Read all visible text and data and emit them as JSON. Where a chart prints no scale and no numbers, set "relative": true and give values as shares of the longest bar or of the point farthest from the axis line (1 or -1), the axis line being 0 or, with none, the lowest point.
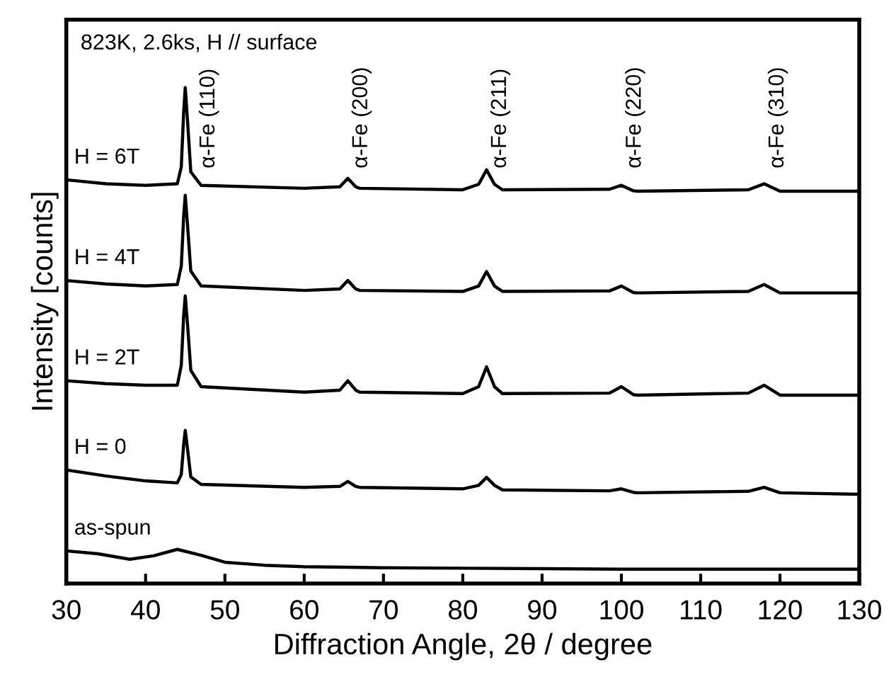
{
  "chart_data": {
    "type": "line",
    "title": "823K, 2.6ks, H // surface",
    "xlabel": "Diffraction Angle, 2θ / degree",
    "ylabel": "Intensity [counts]",
    "relative": true,
    "xlim": [
      30,
      130
    ],
    "xticks": [
      30,
      40,
      50,
      60,
      70,
      80,
      90,
      100,
      110,
      120,
      130
    ],
    "grid": false,
    "legend": false,
    "marker": "none",
    "line_style": "solid",
    "series": [
      {
        "name": "H = 6T",
        "color": "#000000",
        "x": [
          30,
          35,
          40,
          44,
          44.5,
          44.8,
          45,
          45.3,
          45.7,
          47,
          60,
          64.5,
          65.5,
          66.5,
          67,
          80,
          82,
          83,
          84,
          85,
          98.5,
          100,
          101.5,
          102,
          116,
          118,
          120,
          130
        ],
        "values": [
          0.814,
          0.806,
          0.803,
          0.806,
          0.84,
          0.95,
          1.0,
          0.93,
          0.83,
          0.803,
          0.797,
          0.8,
          0.817,
          0.8,
          0.797,
          0.794,
          0.805,
          0.834,
          0.805,
          0.794,
          0.795,
          0.803,
          0.792,
          0.791,
          0.794,
          0.806,
          0.791,
          0.791
        ]
      },
      {
        "name": "H = 4T",
        "color": "#000000",
        "x": [
          30,
          35,
          40,
          44,
          44.5,
          44.8,
          45,
          45.3,
          45.7,
          47,
          60,
          64.5,
          65.5,
          66.5,
          67,
          80,
          82,
          83,
          84,
          85,
          98.5,
          100,
          101.5,
          102,
          116,
          118,
          120,
          130
        ],
        "values": [
          0.611,
          0.604,
          0.6,
          0.603,
          0.64,
          0.74,
          0.783,
          0.72,
          0.63,
          0.6,
          0.591,
          0.594,
          0.611,
          0.594,
          0.591,
          0.589,
          0.6,
          0.629,
          0.6,
          0.589,
          0.59,
          0.6,
          0.587,
          0.586,
          0.589,
          0.603,
          0.586,
          0.586
        ]
      },
      {
        "name": "H = 2T",
        "color": "#000000",
        "x": [
          30,
          35,
          40,
          44,
          44.5,
          44.8,
          45,
          45.3,
          45.7,
          47,
          60,
          64.5,
          65.5,
          66.5,
          67,
          80,
          82,
          83,
          84,
          85,
          98.5,
          100,
          101.5,
          102,
          116,
          118,
          120,
          130
        ],
        "values": [
          0.409,
          0.403,
          0.4,
          0.4,
          0.44,
          0.54,
          0.58,
          0.52,
          0.43,
          0.397,
          0.386,
          0.39,
          0.409,
          0.39,
          0.386,
          0.383,
          0.397,
          0.437,
          0.397,
          0.383,
          0.384,
          0.397,
          0.381,
          0.38,
          0.384,
          0.4,
          0.38,
          0.38
        ]
      },
      {
        "name": "H = 0",
        "color": "#000000",
        "x": [
          30,
          35,
          40,
          44,
          44.5,
          44.8,
          45,
          45.3,
          45.7,
          47,
          60,
          64.5,
          65.5,
          66.5,
          67,
          80,
          82,
          83,
          84,
          85,
          98.5,
          100,
          101.5,
          102,
          116,
          118,
          120,
          130
        ],
        "values": [
          0.229,
          0.217,
          0.207,
          0.203,
          0.22,
          0.28,
          0.309,
          0.27,
          0.215,
          0.2,
          0.194,
          0.196,
          0.206,
          0.196,
          0.194,
          0.191,
          0.198,
          0.214,
          0.198,
          0.189,
          0.187,
          0.191,
          0.184,
          0.183,
          0.186,
          0.194,
          0.183,
          0.18
        ]
      },
      {
        "name": "as-spun",
        "color": "#000000",
        "x": [
          30,
          34,
          38,
          41,
          44,
          47,
          50,
          55,
          60,
          70,
          80,
          90,
          100,
          115,
          130
        ],
        "values": [
          0.066,
          0.06,
          0.049,
          0.056,
          0.069,
          0.057,
          0.043,
          0.037,
          0.034,
          0.032,
          0.031,
          0.03,
          0.029,
          0.029,
          0.029
        ]
      }
    ],
    "annotations": [
      {
        "text": "α-Fe (110)",
        "x": 45,
        "y": 1.0
      },
      {
        "text": "α-Fe (200)",
        "x": 65.5,
        "y": 0.817
      },
      {
        "text": "α-Fe (211)",
        "x": 83,
        "y": 0.834
      },
      {
        "text": "α-Fe (220)",
        "x": 100,
        "y": 0.803
      },
      {
        "text": "α-Fe (310)",
        "x": 118,
        "y": 0.806
      }
    ]
  }
}
